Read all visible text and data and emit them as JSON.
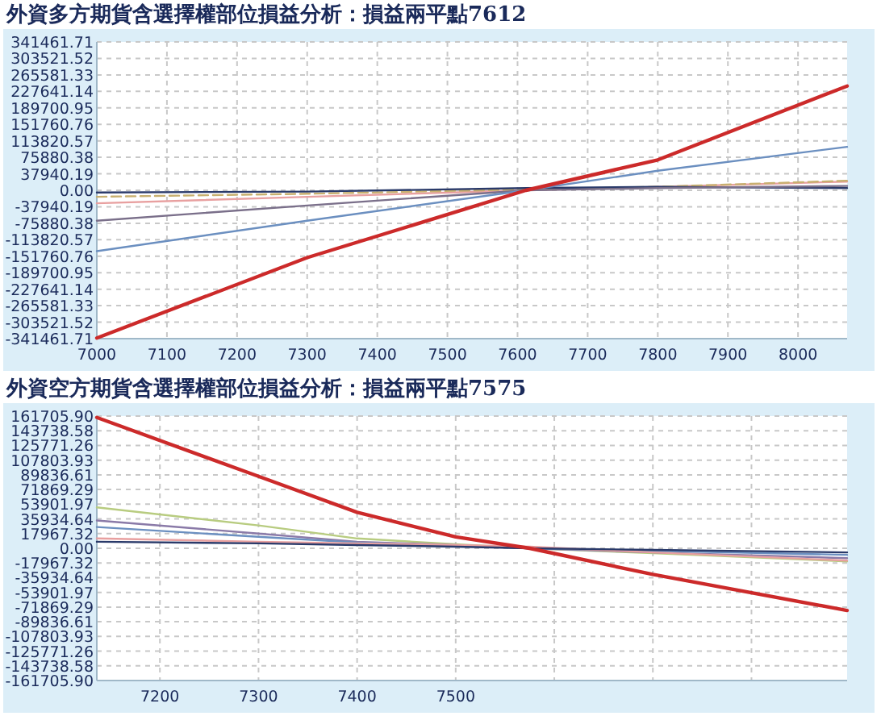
{
  "chart_data": [
    {
      "type": "line",
      "title": "外資多方期貨含選擇權部位損益分析：損益兩平點7612",
      "x": [
        7000,
        7300,
        7612,
        7800,
        8070
      ],
      "xlim": [
        7000,
        8070
      ],
      "xticks": [
        7000,
        7100,
        7200,
        7300,
        7400,
        7500,
        7600,
        7700,
        7800,
        7900,
        8000
      ],
      "ylim": [
        -341461.71,
        341461.71
      ],
      "yticks": [
        341461.71,
        303521.52,
        265581.33,
        227641.14,
        189700.95,
        151760.76,
        113820.57,
        75880.38,
        37940.19,
        {
          "value": 0,
          "label": "0.00"
        },
        -37940.19,
        -75880.38,
        -113820.57,
        -151760.76,
        -189700.95,
        -227641.14,
        -265581.33,
        -303521.52,
        -341461.71
      ],
      "grid": true,
      "series": [
        {
          "color": "#e8a0a0",
          "values": [
            -30000,
            -15000,
            0,
            8000,
            20000
          ]
        },
        {
          "color": "#c8b070",
          "line_style": "dashed",
          "values": [
            -15000,
            -8000,
            2000,
            8000,
            22000
          ]
        },
        {
          "color": "#2a3a6a",
          "values": [
            -5000,
            -3000,
            5000,
            8000,
            5000
          ]
        },
        {
          "color": "#7a6f8a",
          "values": [
            -70000,
            -35000,
            0,
            5000,
            10000
          ]
        },
        {
          "color": "#6b8fc0",
          "values": [
            -140000,
            -70000,
            0,
            45000,
            100000
          ]
        },
        {
          "color": "#cc2a2a",
          "values": [
            -340000,
            -155000,
            0,
            70000,
            240000
          ]
        }
      ]
    },
    {
      "type": "line",
      "title": "外資空方期貨含選擇權部位損益分析：損益兩平點7575",
      "x": [
        7136,
        7300,
        7400,
        7500,
        7575,
        7700,
        7897
      ],
      "xlim": [
        7136,
        7897
      ],
      "xticks": [
        7200,
        7300,
        7400,
        7500,
        {
          "value": 7600,
          "label": null
        },
        {
          "value": 7700,
          "label": null
        },
        {
          "value": 7800,
          "label": null
        }
      ],
      "ylim": [
        -161705.9,
        161705.9
      ],
      "yticks": [
        {
          "value": 161705.9,
          "label": "161705.90"
        },
        143738.58,
        125771.26,
        107803.93,
        89836.61,
        71869.29,
        53901.97,
        35934.64,
        17967.32,
        {
          "value": 0,
          "label": "0.00"
        },
        -17967.32,
        -35934.64,
        -53901.97,
        -71869.29,
        -89836.61,
        -107803.93,
        -125771.26,
        -143738.58,
        {
          "value": -161705.9,
          "label": "-161705.90"
        }
      ],
      "grid": true,
      "series": [
        {
          "color": "#b8cc80",
          "values": [
            50000,
            28000,
            12000,
            5000,
            0,
            -6000,
            -16000
          ]
        },
        {
          "color": "#8a7aa8",
          "values": [
            34000,
            18000,
            8000,
            4000,
            0,
            -5000,
            -12000
          ]
        },
        {
          "color": "#6b8fc0",
          "values": [
            26000,
            14000,
            7000,
            3000,
            0,
            -3000,
            -8000
          ]
        },
        {
          "color": "#e8a0a0",
          "values": [
            12000,
            8000,
            6000,
            4000,
            2000,
            -5000,
            -15000
          ]
        },
        {
          "color": "#2a3a6a",
          "values": [
            8000,
            6000,
            4000,
            2000,
            0,
            -2000,
            -5000
          ]
        },
        {
          "color": "#cc2a2a",
          "values": [
            160000,
            88000,
            44000,
            14000,
            0,
            -32000,
            -76000
          ]
        }
      ]
    }
  ]
}
